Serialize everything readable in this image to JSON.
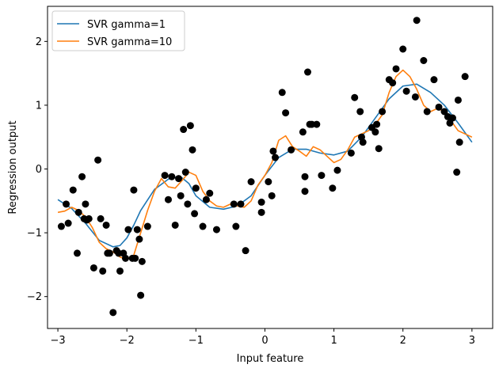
{
  "chart_data": {
    "type": "line",
    "xlabel": "Input feature",
    "ylabel": "Regression output",
    "xlim": [
      -3.15,
      3.3
    ],
    "ylim": [
      -2.5,
      2.55
    ],
    "xticks": [
      -3,
      -2,
      -1,
      0,
      1,
      2,
      3
    ],
    "xtick_labels": [
      "−3",
      "−2",
      "−1",
      "0",
      "1",
      "2",
      "3"
    ],
    "yticks": [
      -2,
      -1,
      0,
      1,
      2
    ],
    "ytick_labels": [
      "−2",
      "−1",
      "0",
      "1",
      "2"
    ],
    "grid": false,
    "legend": "top-left",
    "series": [
      {
        "name": "SVR gamma=1",
        "kind": "line",
        "color": "#1f77b4",
        "x": [
          -3.0,
          -2.8,
          -2.6,
          -2.4,
          -2.2,
          -2.1,
          -2.0,
          -1.9,
          -1.8,
          -1.6,
          -1.4,
          -1.3,
          -1.2,
          -1.1,
          -1.0,
          -0.8,
          -0.6,
          -0.4,
          -0.2,
          0.0,
          0.2,
          0.4,
          0.6,
          0.8,
          1.0,
          1.2,
          1.4,
          1.6,
          1.8,
          2.0,
          2.2,
          2.4,
          2.6,
          2.8,
          3.0
        ],
        "y": [
          -0.48,
          -0.62,
          -0.85,
          -1.12,
          -1.22,
          -1.2,
          -1.08,
          -0.88,
          -0.65,
          -0.32,
          -0.16,
          -0.13,
          -0.14,
          -0.23,
          -0.42,
          -0.6,
          -0.63,
          -0.58,
          -0.42,
          -0.1,
          0.18,
          0.31,
          0.31,
          0.25,
          0.22,
          0.28,
          0.5,
          0.8,
          1.1,
          1.3,
          1.33,
          1.2,
          1.0,
          0.72,
          0.42
        ]
      },
      {
        "name": "SVR gamma=10",
        "kind": "line",
        "color": "#ff7f0e",
        "x": [
          -3.0,
          -2.9,
          -2.8,
          -2.7,
          -2.6,
          -2.5,
          -2.4,
          -2.3,
          -2.2,
          -2.1,
          -2.0,
          -1.9,
          -1.8,
          -1.7,
          -1.6,
          -1.5,
          -1.4,
          -1.3,
          -1.2,
          -1.1,
          -1.0,
          -0.9,
          -0.8,
          -0.7,
          -0.6,
          -0.5,
          -0.4,
          -0.3,
          -0.2,
          -0.1,
          0.0,
          0.1,
          0.2,
          0.3,
          0.4,
          0.5,
          0.6,
          0.7,
          0.8,
          0.9,
          1.0,
          1.1,
          1.2,
          1.3,
          1.4,
          1.5,
          1.6,
          1.7,
          1.8,
          1.9,
          2.0,
          2.1,
          2.2,
          2.3,
          2.4,
          2.5,
          2.6,
          2.7,
          2.8,
          2.9,
          3.0
        ],
        "y": [
          -0.68,
          -0.66,
          -0.6,
          -0.65,
          -0.75,
          -0.92,
          -1.15,
          -1.25,
          -1.3,
          -1.38,
          -1.42,
          -1.35,
          -1.0,
          -0.65,
          -0.35,
          -0.15,
          -0.28,
          -0.3,
          -0.18,
          -0.05,
          -0.1,
          -0.35,
          -0.5,
          -0.58,
          -0.6,
          -0.55,
          -0.58,
          -0.6,
          -0.5,
          -0.25,
          -0.1,
          0.1,
          0.45,
          0.52,
          0.35,
          0.28,
          0.2,
          0.35,
          0.3,
          0.2,
          0.1,
          0.15,
          0.3,
          0.5,
          0.55,
          0.6,
          0.7,
          0.85,
          1.2,
          1.45,
          1.55,
          1.45,
          1.25,
          1.0,
          0.9,
          0.95,
          0.9,
          0.75,
          0.6,
          0.55,
          0.5
        ]
      },
      {
        "name": "",
        "kind": "scatter",
        "color": "#000000",
        "x": [
          -2.95,
          -2.88,
          -2.85,
          -2.78,
          -2.72,
          -2.7,
          -2.65,
          -2.62,
          -2.6,
          -2.58,
          -2.55,
          -2.48,
          -2.42,
          -2.38,
          -2.35,
          -2.3,
          -2.28,
          -2.25,
          -2.2,
          -2.15,
          -2.12,
          -2.1,
          -2.05,
          -2.02,
          -1.98,
          -1.92,
          -1.9,
          -1.88,
          -1.85,
          -1.82,
          -1.8,
          -1.78,
          -1.7,
          -1.45,
          -1.4,
          -1.35,
          -1.3,
          -1.25,
          -1.22,
          -1.18,
          -1.15,
          -1.12,
          -1.08,
          -1.05,
          -1.02,
          -1.0,
          -0.9,
          -0.85,
          -0.8,
          -0.7,
          -0.45,
          -0.42,
          -0.35,
          -0.28,
          -0.2,
          -0.05,
          -0.05,
          0.05,
          0.1,
          0.12,
          0.15,
          0.25,
          0.3,
          0.38,
          0.55,
          0.58,
          0.58,
          0.62,
          0.65,
          0.68,
          0.75,
          0.82,
          0.98,
          1.05,
          1.25,
          1.3,
          1.38,
          1.4,
          1.42,
          1.55,
          1.6,
          1.62,
          1.65,
          1.7,
          1.8,
          1.85,
          1.9,
          2.0,
          2.05,
          2.18,
          2.2,
          2.3,
          2.35,
          2.45,
          2.52,
          2.6,
          2.65,
          2.68,
          2.72,
          2.78,
          2.8,
          2.82,
          2.9
        ],
        "y": [
          -0.9,
          -0.55,
          -0.85,
          -0.33,
          -1.32,
          -0.68,
          -0.12,
          -0.78,
          -0.55,
          -0.8,
          -0.78,
          -1.55,
          0.14,
          -0.78,
          -1.6,
          -0.88,
          -1.32,
          -1.32,
          -2.25,
          -1.28,
          -1.32,
          -1.6,
          -1.32,
          -1.4,
          -0.95,
          -1.4,
          -0.33,
          -1.4,
          -0.95,
          -1.1,
          -1.98,
          -1.45,
          -0.9,
          -0.1,
          -0.48,
          -0.12,
          -0.88,
          -0.15,
          -0.42,
          0.62,
          -0.05,
          -0.55,
          0.68,
          0.3,
          -0.7,
          -0.3,
          -0.9,
          -0.48,
          -0.38,
          -0.95,
          -0.55,
          -0.9,
          -0.55,
          -1.28,
          -0.2,
          -0.68,
          -0.52,
          -0.2,
          -0.42,
          0.28,
          0.18,
          1.2,
          0.88,
          0.3,
          0.58,
          -0.35,
          -0.12,
          1.52,
          0.7,
          0.7,
          0.7,
          -0.1,
          -0.3,
          -0.02,
          0.25,
          1.12,
          0.9,
          0.5,
          0.42,
          0.65,
          0.58,
          0.7,
          0.32,
          0.9,
          1.4,
          1.35,
          1.57,
          1.88,
          1.22,
          1.13,
          2.33,
          1.7,
          0.9,
          1.4,
          0.97,
          0.9,
          0.82,
          0.72,
          0.8,
          -0.05,
          1.08,
          0.42,
          1.45
        ]
      }
    ]
  }
}
